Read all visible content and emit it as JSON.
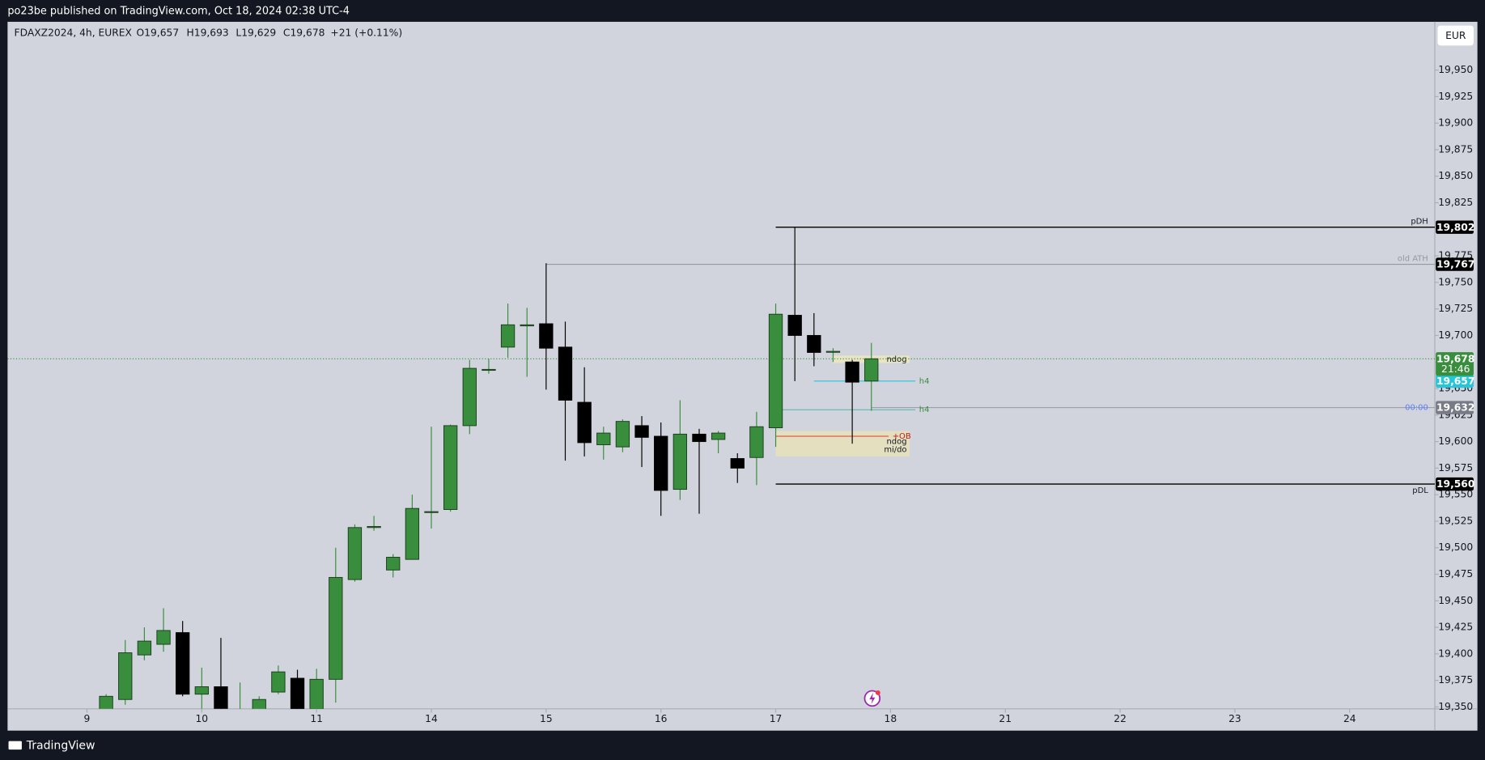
{
  "header": {
    "publisher": "po23be published on TradingView.com, Oct 18, 2024 02:38 UTC-4",
    "brand": "TradingView",
    "currency": "EUR"
  },
  "legend": {
    "symbol": "FDAXZ2024, 4h, EUREX",
    "open": "O19,657",
    "high": "H19,693",
    "low": "L19,629",
    "close": "C19,678",
    "change": "+21 (+0.11%)"
  },
  "chart_data": {
    "type": "candlestick",
    "x": [
      0,
      1,
      2,
      3,
      4,
      5,
      6,
      7,
      8,
      9,
      10,
      11,
      12,
      13,
      14,
      15,
      16,
      17,
      18,
      19,
      20,
      21,
      22,
      23,
      24,
      25,
      26,
      27,
      28,
      29,
      30,
      31,
      32,
      33,
      34,
      35,
      36,
      37,
      38,
      39,
      40
    ],
    "open": [
      19340,
      19357,
      19399,
      19409,
      19420,
      19362,
      19369,
      19340,
      19343,
      19364,
      19377,
      19348,
      19376,
      19470,
      19519,
      19479,
      19489,
      19534,
      19536,
      19615,
      19668,
      19689,
      19709,
      19711,
      19689,
      19637,
      19597,
      19595,
      19615,
      19605,
      19555,
      19607,
      19602,
      19584,
      19585,
      19613,
      19719,
      19700,
      19685,
      19675,
      19657
    ],
    "high": [
      19362,
      19413,
      19425,
      19443,
      19431,
      19387,
      19415,
      19373,
      19360,
      19389,
      19385,
      19386,
      19500,
      19522,
      19530,
      19494,
      19550,
      19614,
      19616,
      19677,
      19678,
      19730,
      19726,
      19768,
      19713,
      19670,
      19614,
      19621,
      19624,
      19618,
      19639,
      19612,
      19610,
      19589,
      19628,
      19730,
      19802,
      19721,
      19688,
      19677,
      19693
    ],
    "low": [
      19330,
      19352,
      19394,
      19402,
      19360,
      19345,
      19335,
      19330,
      19335,
      19362,
      19340,
      19340,
      19354,
      19468,
      19516,
      19472,
      19489,
      19518,
      19534,
      19607,
      19664,
      19679,
      19661,
      19649,
      19582,
      19586,
      19583,
      19590,
      19576,
      19530,
      19545,
      19532,
      19589,
      19561,
      19559,
      19595,
      19657,
      19671,
      19675,
      19598,
      19629
    ],
    "close": [
      19360,
      19401,
      19412,
      19422,
      19362,
      19369,
      19345,
      19345,
      19357,
      19383,
      19348,
      19376,
      19472,
      19519,
      19520,
      19491,
      19537,
      19534,
      19615,
      19669,
      19668,
      19710,
      19710,
      19688,
      19639,
      19599,
      19608,
      19619,
      19604,
      19554,
      19607,
      19600,
      19608,
      19575,
      19614,
      19720,
      19700,
      19684,
      19685,
      19656,
      19678
    ],
    "up_color": "#388e3c",
    "down_color": "#000000",
    "xlim": [
      -5.15,
      69.45
    ],
    "xticks": [
      {
        "value": -1,
        "label": "9"
      },
      {
        "value": 5,
        "label": "10"
      },
      {
        "value": 11,
        "label": "11"
      },
      {
        "value": 17,
        "label": "14"
      },
      {
        "value": 23,
        "label": "15"
      },
      {
        "value": 29,
        "label": "16"
      },
      {
        "value": 35,
        "label": "17"
      },
      {
        "value": 41,
        "label": "18"
      },
      {
        "value": 47,
        "label": "21"
      },
      {
        "value": 53,
        "label": "22"
      },
      {
        "value": 59,
        "label": "23"
      },
      {
        "value": 65,
        "label": "24"
      }
    ],
    "ylim": [
      19348.2,
      19995.5
    ],
    "yticks": [
      {
        "value": 19350,
        "label": "19,350"
      },
      {
        "value": 19375,
        "label": "19,375"
      },
      {
        "value": 19400,
        "label": "19,400"
      },
      {
        "value": 19425,
        "label": "19,425"
      },
      {
        "value": 19450,
        "label": "19,450"
      },
      {
        "value": 19475,
        "label": "19,475"
      },
      {
        "value": 19500,
        "label": "19,500"
      },
      {
        "value": 19525,
        "label": "19,525"
      },
      {
        "value": 19550,
        "label": "19,550"
      },
      {
        "value": 19575,
        "label": "19,575"
      },
      {
        "value": 19600,
        "label": "19,600"
      },
      {
        "value": 19625,
        "label": "19,625"
      },
      {
        "value": 19650,
        "label": "19,650"
      },
      {
        "value": 19675,
        "label": "19,675"
      },
      {
        "value": 19700,
        "label": "19,700"
      },
      {
        "value": 19725,
        "label": "19,725"
      },
      {
        "value": 19750,
        "label": "19,750"
      },
      {
        "value": 19775,
        "label": "19,775"
      },
      {
        "value": 19800,
        "label": "19,800"
      },
      {
        "value": 19825,
        "label": "19,825"
      },
      {
        "value": 19850,
        "label": "19,850"
      },
      {
        "value": 19875,
        "label": "19,875"
      },
      {
        "value": 19900,
        "label": "19,900"
      },
      {
        "value": 19925,
        "label": "19,925"
      },
      {
        "value": 19950,
        "label": "19,950"
      }
    ],
    "grid": false,
    "levels": [
      {
        "name": "pDH",
        "value": 19802,
        "value_label": "19,802",
        "from": 35,
        "color": "#000000",
        "badge_color": "#000000",
        "label_position": "above"
      },
      {
        "name": "old ATH",
        "value": 19767,
        "value_label": "19,767",
        "from": 23,
        "color": "#9598a1",
        "badge_color": "#000000",
        "label_position": "above"
      },
      {
        "name": "pDL",
        "value": 19560,
        "value_label": "19,560",
        "from": 35,
        "color": "#000000",
        "badge_color": "#000000",
        "label_position": "below"
      },
      {
        "name": "00:00",
        "value": 19632,
        "value_label": "19,632",
        "from": 40,
        "color": "#9598a1",
        "badge_color": "#787b86",
        "label_color": "#5b7fff",
        "label_position": "left"
      },
      {
        "name": "h4",
        "value": 19657,
        "value_label": "19,657",
        "from": 37,
        "to": 42.3,
        "color": "#26c6da",
        "badge_color": "#26c6da",
        "label_color": "#388e3c",
        "label_position": "end"
      },
      {
        "name": "h4",
        "value": 19630,
        "from": 35,
        "to": 42.3,
        "color": "#4db6ac",
        "label_color": "#388e3c",
        "label_position": "end"
      },
      {
        "name": "+OB",
        "value": 19605,
        "from": 35,
        "to": 40.9,
        "color": "#e53935",
        "label_color": "#b71c1c",
        "label_position": "end"
      }
    ],
    "zones": [
      {
        "from": 38,
        "to": 42,
        "top": 19681,
        "bottom": 19674,
        "color": "#e8e4c4",
        "labels": [
          "ndog"
        ]
      },
      {
        "from": 35,
        "to": 42,
        "top": 19610,
        "bottom": 19586,
        "color": "#e3dfbf",
        "labels": [
          "ndog",
          "mi/do"
        ]
      }
    ],
    "last_price": {
      "value": 19678,
      "value_label": "19,678",
      "countdown": "21:46",
      "color": "#388e3c"
    }
  }
}
